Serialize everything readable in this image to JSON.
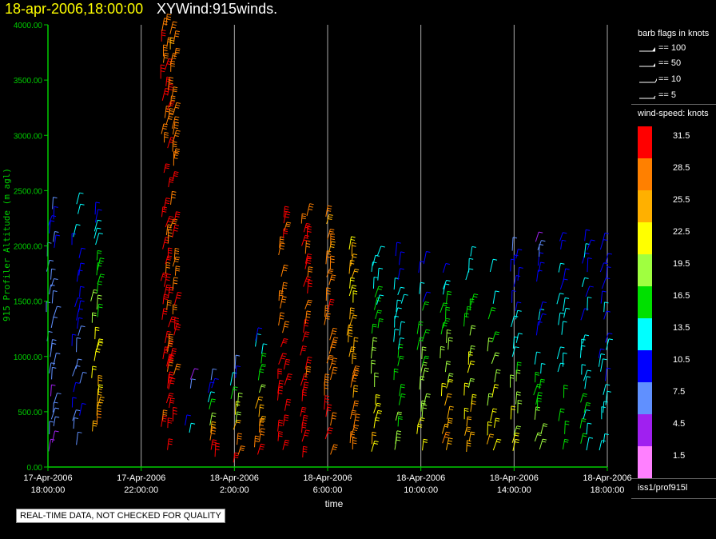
{
  "header": {
    "date": "18-apr-2006,18:00:00",
    "name": "XYWind:915winds."
  },
  "qc_notice": "REAL-TIME DATA, NOT CHECKED FOR QUALITY",
  "legend": {
    "flags_title": "barb flags in knots",
    "flags": [
      "== 100",
      "== 50",
      "== 10",
      "== 5"
    ],
    "speed_title": "wind-speed: knots",
    "colorbar": [
      {
        "label": "31.5",
        "color": "#ff0000"
      },
      {
        "label": "28.5",
        "color": "#ff8000"
      },
      {
        "label": "25.5",
        "color": "#ffb000"
      },
      {
        "label": "22.5",
        "color": "#ffff00"
      },
      {
        "label": "19.5",
        "color": "#a0ff40"
      },
      {
        "label": "16.5",
        "color": "#00e000"
      },
      {
        "label": "13.5",
        "color": "#00ffff"
      },
      {
        "label": "10.5",
        "color": "#0000ff"
      },
      {
        "label": "7.5",
        "color": "#6090ff"
      },
      {
        "label": "4.5",
        "color": "#a020f0"
      },
      {
        "label": "1.5",
        "color": "#ff80ff"
      }
    ],
    "source": "iss1/prof915l"
  },
  "chart_data": {
    "type": "scatter",
    "subtype": "wind-barbs",
    "title": "XYWind:915winds.",
    "xlabel": "time",
    "ylabel": "915 Profiler Altitude (m agl)",
    "ylim": [
      0,
      4000
    ],
    "yticks": [
      "0.00",
      "500.00",
      "1000.00",
      "1500.00",
      "2000.00",
      "2500.00",
      "3000.00",
      "3500.00",
      "4000.00"
    ],
    "xticks": [
      {
        "date": "17-Apr-2006",
        "time": "18:00:00"
      },
      {
        "date": "17-Apr-2006",
        "time": "22:00:00"
      },
      {
        "date": "18-Apr-2006",
        "time": "2:00:00"
      },
      {
        "date": "18-Apr-2006",
        "time": "6:00:00"
      },
      {
        "date": "18-Apr-2006",
        "time": "10:00:00"
      },
      {
        "date": "18-Apr-2006",
        "time": "14:00:00"
      },
      {
        "date": "18-Apr-2006",
        "time": "18:00:00"
      }
    ],
    "xlim_hours": [
      0,
      24
    ],
    "grid": "vertical",
    "colors": {
      "axis": "#00cc00",
      "grid": "#aaaaaa",
      "tick_label": "#00cc00"
    },
    "wind_speed_knots_levels": [
      1.5,
      4.5,
      7.5,
      10.5,
      13.5,
      16.5,
      19.5,
      22.5,
      25.5,
      28.5,
      31.5
    ],
    "profiles": [
      {
        "t": 0.1,
        "range": [
          150,
          2450
        ],
        "speed_low": 6,
        "speed_high": 9
      },
      {
        "t": 1.2,
        "range": [
          200,
          2400
        ],
        "speed_low": 8,
        "speed_high": 12
      },
      {
        "t": 2.0,
        "range": [
          250,
          2350
        ],
        "speed_low": 28,
        "speed_high": 11
      },
      {
        "t": 5.0,
        "range": [
          150,
          4000
        ],
        "speed_low": 31,
        "speed_high": 30
      },
      {
        "t": 5.3,
        "range": [
          200,
          3950
        ],
        "speed_low": 31,
        "speed_high": 28
      },
      {
        "t": 6.0,
        "range": [
          300,
          900
        ],
        "speed_low": 12,
        "speed_high": 6
      },
      {
        "t": 7.0,
        "range": [
          100,
          800
        ],
        "speed_low": 31,
        "speed_high": 8
      },
      {
        "t": 8.0,
        "range": [
          50,
          900
        ],
        "speed_low": 31,
        "speed_high": 9
      },
      {
        "t": 9.0,
        "range": [
          100,
          1200
        ],
        "speed_low": 31,
        "speed_high": 11
      },
      {
        "t": 10.0,
        "range": [
          100,
          2300
        ],
        "speed_low": 31,
        "speed_high": 30
      },
      {
        "t": 11.0,
        "range": [
          100,
          2300
        ],
        "speed_low": 31,
        "speed_high": 30
      },
      {
        "t": 12.0,
        "range": [
          100,
          2300
        ],
        "speed_low": 30,
        "speed_high": 28
      },
      {
        "t": 13.0,
        "range": [
          150,
          2200
        ],
        "speed_low": 29,
        "speed_high": 22
      },
      {
        "t": 14.0,
        "range": [
          150,
          2000
        ],
        "speed_low": 24,
        "speed_high": 12
      },
      {
        "t": 15.0,
        "range": [
          150,
          1900
        ],
        "speed_low": 20,
        "speed_high": 11
      },
      {
        "t": 16.0,
        "range": [
          150,
          1900
        ],
        "speed_low": 24,
        "speed_high": 10
      },
      {
        "t": 17.0,
        "range": [
          150,
          1800
        ],
        "speed_low": 27,
        "speed_high": 12
      },
      {
        "t": 18.0,
        "range": [
          150,
          1900
        ],
        "speed_low": 26,
        "speed_high": 13
      },
      {
        "t": 19.0,
        "range": [
          150,
          1800
        ],
        "speed_low": 24,
        "speed_high": 13
      },
      {
        "t": 20.0,
        "range": [
          150,
          2000
        ],
        "speed_low": 22,
        "speed_high": 8
      },
      {
        "t": 21.0,
        "range": [
          150,
          2100
        ],
        "speed_low": 20,
        "speed_high": 6
      },
      {
        "t": 22.0,
        "range": [
          150,
          2050
        ],
        "speed_low": 18,
        "speed_high": 10
      },
      {
        "t": 23.0,
        "range": [
          150,
          2100
        ],
        "speed_low": 15,
        "speed_high": 11
      },
      {
        "t": 23.8,
        "range": [
          150,
          2100
        ],
        "speed_low": 13,
        "speed_high": 10
      }
    ]
  }
}
